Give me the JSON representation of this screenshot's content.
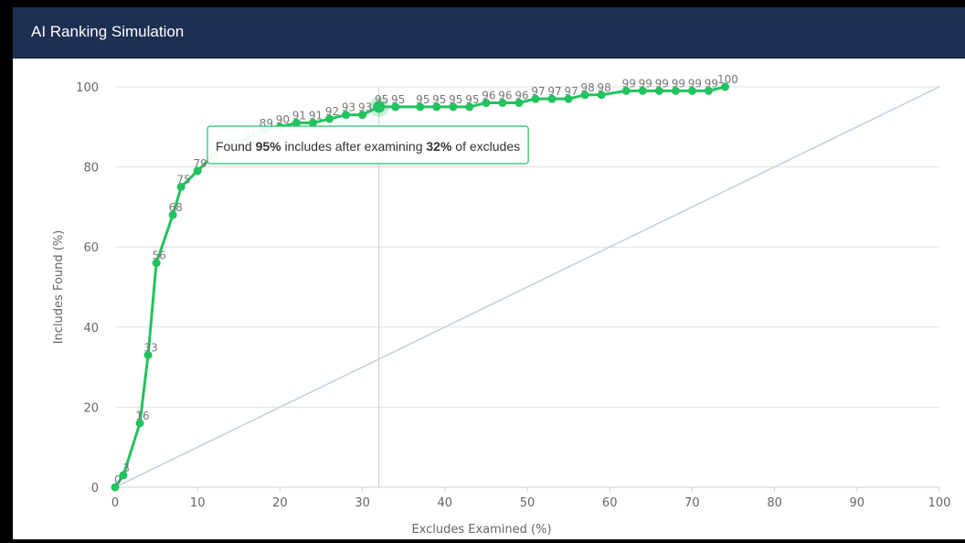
{
  "window": {
    "title": "AI Ranking Simulation"
  },
  "colors": {
    "header_bg": "#1d3054",
    "series": "#21c35f",
    "baseline": "#c3cfdb",
    "grid": "#dde1e6",
    "tooltip_border": "#21c35f"
  },
  "chart_data": {
    "type": "line",
    "xlabel": "Excludes Examined (%)",
    "ylabel": "Includes Found (%)",
    "xlim": [
      0,
      100
    ],
    "ylim": [
      0,
      100
    ],
    "xticks": [
      "0",
      "10",
      "20",
      "30",
      "40",
      "50",
      "60",
      "70",
      "80",
      "90",
      "100"
    ],
    "yticks": [
      "0",
      "20",
      "40",
      "60",
      "80",
      "100"
    ],
    "grid": "horizontal",
    "baseline": {
      "x": [
        0,
        100
      ],
      "y": [
        0,
        100
      ]
    },
    "series": [
      {
        "x": [
          0,
          1,
          3,
          4,
          5,
          7,
          8,
          10,
          12,
          14,
          16,
          18,
          20,
          22,
          24,
          26,
          28,
          30,
          32,
          34,
          37,
          39,
          41,
          43,
          45,
          47,
          49,
          51,
          53,
          55,
          57,
          59,
          62,
          64,
          66,
          68,
          70,
          72,
          74
        ],
        "y": [
          0,
          3,
          16,
          33,
          56,
          68,
          75,
          79,
          83,
          86,
          87,
          89,
          90,
          91,
          91,
          92,
          93,
          93,
          95,
          95,
          95,
          95,
          95,
          95,
          96,
          96,
          96,
          97,
          97,
          97,
          98,
          98,
          99,
          99,
          99,
          99,
          99,
          99,
          100
        ],
        "labels": [
          "0",
          "3",
          "16",
          "33",
          "56",
          "68",
          "75",
          "79",
          "",
          "",
          "87",
          "89",
          "90",
          "91",
          "91",
          "92",
          "93",
          "93",
          "95",
          "95",
          "95",
          "95",
          "95",
          "95",
          "96",
          "96",
          "96",
          "97",
          "97",
          "97",
          "98",
          "98",
          "99",
          "99",
          "99",
          "99",
          "99",
          "99",
          "100"
        ]
      }
    ],
    "highlight": {
      "x": 32,
      "y": 95
    },
    "tooltip": {
      "prefix": "Found ",
      "includes_value": "95%",
      "middle": " includes after examining ",
      "excludes_value": "32%",
      "suffix": " of excludes"
    }
  }
}
